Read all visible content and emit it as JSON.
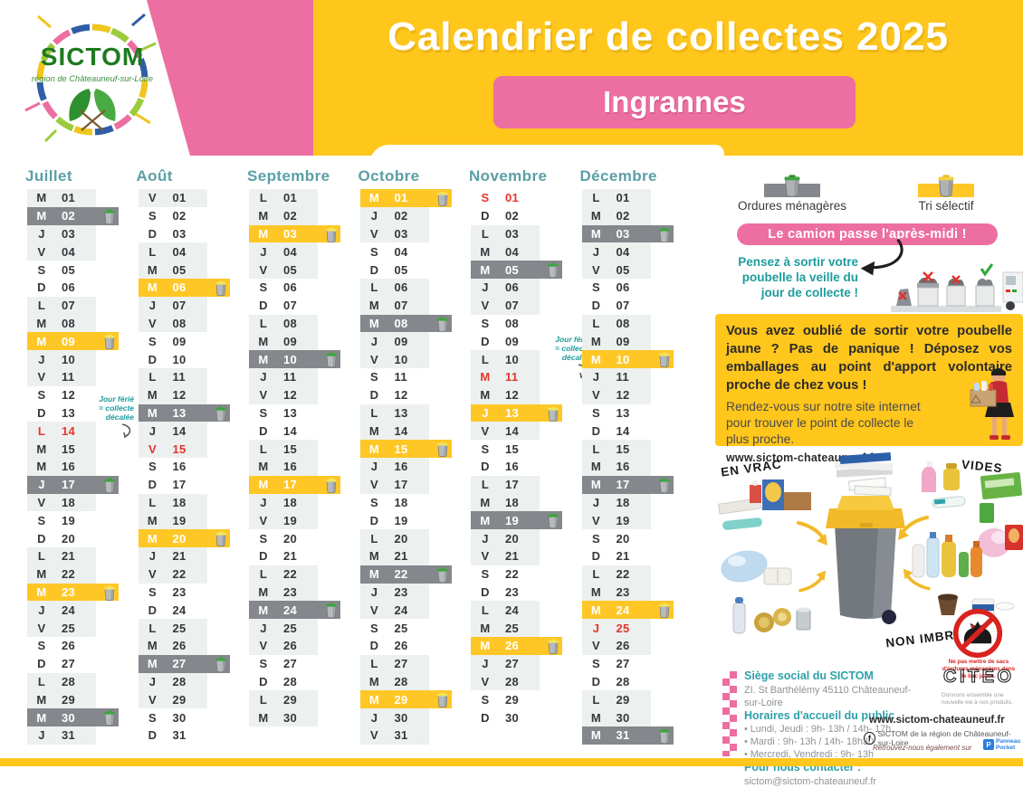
{
  "header": {
    "title": "Calendrier de collectes 2025",
    "commune": "Ingrannes",
    "logo_name": "SICTOM",
    "logo_subtitle": "région de Châteauneuf-sur-Loire"
  },
  "colors": {
    "yellow": "#FFC61C",
    "pink": "#ED6EA0",
    "gray_collect": "#84888C",
    "yellow_collect": "#FFC726",
    "holiday_red": "#E5352E",
    "teal": "#5B9FA6"
  },
  "legend": {
    "om": "Ordures ménagères",
    "tri": "Tri sélectif",
    "banner": "Le camion passe l'après-midi !",
    "reminder": "Pensez à sortir votre poubelle la veille du jour de collecte !"
  },
  "info": {
    "bold": "Vous avez oublié de sortir votre poubelle jaune ? Pas de panique ! Déposez vos emballages au point d'apport volontaire proche de chez vous !",
    "body": "Rendez-vous sur notre site internet pour trouver le point de collecte le plus proche.",
    "site": "www.sictom-chateauneuf.fr"
  },
  "sort": {
    "vrac": "EN VRAC",
    "vides": "VIDES",
    "non_imbriques": "NON IMBRIQUÉS",
    "no_bag": "Ne pas mettre de sacs d'ordures ménagères dans le bac jaune."
  },
  "contact": {
    "hq_title": "Siège social du SICTOM",
    "hq_addr": "ZI. St Barthélémy 45110 Châteauneuf-sur-Loire",
    "hours_title": "Horaires d'accueil du public",
    "hours": [
      "• Lundi, Jeudi : 9h- 13h / 14h- 17h",
      "• Mardi : 9h- 13h / 14h- 18h30",
      "• Mercredi, Vendredi : 9h- 13h"
    ],
    "contact_title": "Pour nous contacter :",
    "email": "sictom@sictom-chateauneuf.fr"
  },
  "foot": {
    "citeo": "CITEO",
    "citeo_tag": "Donnons ensemble une nouvelle vie à nos produits.",
    "site": "www.sictom-chateauneuf.fr",
    "fb": "SICTOM de la région de Châteauneuf-sur-Loire",
    "also": "Retrouvez-nous également sur",
    "pp1": "Panneau",
    "pp2": "Pocket"
  },
  "calendar": {
    "holiday_note_lines": [
      "Jour férié",
      "= collecte",
      "décalée"
    ],
    "legend_types": {
      "om": "ordures-menageres",
      "tri": "tri-selectif",
      "hol": "jour-ferie"
    },
    "months": [
      {
        "name": "Juillet",
        "days": [
          [
            "M",
            "01"
          ],
          [
            "M",
            "02",
            "om"
          ],
          [
            "J",
            "03"
          ],
          [
            "V",
            "04"
          ],
          [
            "S",
            "05"
          ],
          [
            "D",
            "06"
          ],
          [
            "L",
            "07"
          ],
          [
            "M",
            "08"
          ],
          [
            "M",
            "09",
            "tri"
          ],
          [
            "J",
            "10"
          ],
          [
            "V",
            "11"
          ],
          [
            "S",
            "12"
          ],
          [
            "D",
            "13"
          ],
          [
            "L",
            "14",
            "hol"
          ],
          [
            "M",
            "15"
          ],
          [
            "M",
            "16"
          ],
          [
            "J",
            "17",
            "om"
          ],
          [
            "V",
            "18"
          ],
          [
            "S",
            "19"
          ],
          [
            "D",
            "20"
          ],
          [
            "L",
            "21"
          ],
          [
            "M",
            "22"
          ],
          [
            "M",
            "23",
            "tri"
          ],
          [
            "J",
            "24"
          ],
          [
            "V",
            "25"
          ],
          [
            "S",
            "26"
          ],
          [
            "D",
            "27"
          ],
          [
            "L",
            "28"
          ],
          [
            "M",
            "29"
          ],
          [
            "M",
            "30",
            "om"
          ],
          [
            "J",
            "31"
          ]
        ]
      },
      {
        "name": "Août",
        "days": [
          [
            "V",
            "01"
          ],
          [
            "S",
            "02"
          ],
          [
            "D",
            "03"
          ],
          [
            "L",
            "04"
          ],
          [
            "M",
            "05"
          ],
          [
            "M",
            "06",
            "tri"
          ],
          [
            "J",
            "07"
          ],
          [
            "V",
            "08"
          ],
          [
            "S",
            "09"
          ],
          [
            "D",
            "10"
          ],
          [
            "L",
            "11"
          ],
          [
            "M",
            "12"
          ],
          [
            "M",
            "13",
            "om"
          ],
          [
            "J",
            "14"
          ],
          [
            "V",
            "15",
            "hol"
          ],
          [
            "S",
            "16"
          ],
          [
            "D",
            "17"
          ],
          [
            "L",
            "18"
          ],
          [
            "M",
            "19"
          ],
          [
            "M",
            "20",
            "tri"
          ],
          [
            "J",
            "21"
          ],
          [
            "V",
            "22"
          ],
          [
            "S",
            "23"
          ],
          [
            "D",
            "24"
          ],
          [
            "L",
            "25"
          ],
          [
            "M",
            "26"
          ],
          [
            "M",
            "27",
            "om"
          ],
          [
            "J",
            "28"
          ],
          [
            "V",
            "29"
          ],
          [
            "S",
            "30"
          ],
          [
            "D",
            "31"
          ]
        ]
      },
      {
        "name": "Septembre",
        "days": [
          [
            "L",
            "01"
          ],
          [
            "M",
            "02"
          ],
          [
            "M",
            "03",
            "tri"
          ],
          [
            "J",
            "04"
          ],
          [
            "V",
            "05"
          ],
          [
            "S",
            "06"
          ],
          [
            "D",
            "07"
          ],
          [
            "L",
            "08"
          ],
          [
            "M",
            "09"
          ],
          [
            "M",
            "10",
            "om"
          ],
          [
            "J",
            "11"
          ],
          [
            "V",
            "12"
          ],
          [
            "S",
            "13"
          ],
          [
            "D",
            "14"
          ],
          [
            "L",
            "15"
          ],
          [
            "M",
            "16"
          ],
          [
            "M",
            "17",
            "tri"
          ],
          [
            "J",
            "18"
          ],
          [
            "V",
            "19"
          ],
          [
            "S",
            "20"
          ],
          [
            "D",
            "21"
          ],
          [
            "L",
            "22"
          ],
          [
            "M",
            "23"
          ],
          [
            "M",
            "24",
            "om"
          ],
          [
            "J",
            "25"
          ],
          [
            "V",
            "26"
          ],
          [
            "S",
            "27"
          ],
          [
            "D",
            "28"
          ],
          [
            "L",
            "29"
          ],
          [
            "M",
            "30"
          ]
        ]
      },
      {
        "name": "Octobre",
        "days": [
          [
            "M",
            "01",
            "tri"
          ],
          [
            "J",
            "02"
          ],
          [
            "V",
            "03"
          ],
          [
            "S",
            "04"
          ],
          [
            "D",
            "05"
          ],
          [
            "L",
            "06"
          ],
          [
            "M",
            "07"
          ],
          [
            "M",
            "08",
            "om"
          ],
          [
            "J",
            "09"
          ],
          [
            "V",
            "10"
          ],
          [
            "S",
            "11"
          ],
          [
            "D",
            "12"
          ],
          [
            "L",
            "13"
          ],
          [
            "M",
            "14"
          ],
          [
            "M",
            "15",
            "tri"
          ],
          [
            "J",
            "16"
          ],
          [
            "V",
            "17"
          ],
          [
            "S",
            "18"
          ],
          [
            "D",
            "19"
          ],
          [
            "L",
            "20"
          ],
          [
            "M",
            "21"
          ],
          [
            "M",
            "22",
            "om"
          ],
          [
            "J",
            "23"
          ],
          [
            "V",
            "24"
          ],
          [
            "S",
            "25"
          ],
          [
            "D",
            "26"
          ],
          [
            "L",
            "27"
          ],
          [
            "M",
            "28"
          ],
          [
            "M",
            "29",
            "tri"
          ],
          [
            "J",
            "30"
          ],
          [
            "V",
            "31"
          ]
        ]
      },
      {
        "name": "Novembre",
        "days": [
          [
            "S",
            "01",
            "hol"
          ],
          [
            "D",
            "02"
          ],
          [
            "L",
            "03"
          ],
          [
            "M",
            "04"
          ],
          [
            "M",
            "05",
            "om"
          ],
          [
            "J",
            "06"
          ],
          [
            "V",
            "07"
          ],
          [
            "S",
            "08"
          ],
          [
            "D",
            "09"
          ],
          [
            "L",
            "10"
          ],
          [
            "M",
            "11",
            "hol"
          ],
          [
            "M",
            "12"
          ],
          [
            "J",
            "13",
            "tri"
          ],
          [
            "V",
            "14"
          ],
          [
            "S",
            "15"
          ],
          [
            "D",
            "16"
          ],
          [
            "L",
            "17"
          ],
          [
            "M",
            "18"
          ],
          [
            "M",
            "19",
            "om"
          ],
          [
            "J",
            "20"
          ],
          [
            "V",
            "21"
          ],
          [
            "S",
            "22"
          ],
          [
            "D",
            "23"
          ],
          [
            "L",
            "24"
          ],
          [
            "M",
            "25"
          ],
          [
            "M",
            "26",
            "tri"
          ],
          [
            "J",
            "27"
          ],
          [
            "V",
            "28"
          ],
          [
            "S",
            "29"
          ],
          [
            "D",
            "30"
          ]
        ]
      },
      {
        "name": "Décembre",
        "days": [
          [
            "L",
            "01"
          ],
          [
            "M",
            "02"
          ],
          [
            "M",
            "03",
            "om"
          ],
          [
            "J",
            "04"
          ],
          [
            "V",
            "05"
          ],
          [
            "S",
            "06"
          ],
          [
            "D",
            "07"
          ],
          [
            "L",
            "08"
          ],
          [
            "M",
            "09"
          ],
          [
            "M",
            "10",
            "tri"
          ],
          [
            "J",
            "11"
          ],
          [
            "V",
            "12"
          ],
          [
            "S",
            "13"
          ],
          [
            "D",
            "14"
          ],
          [
            "L",
            "15"
          ],
          [
            "M",
            "16"
          ],
          [
            "M",
            "17",
            "om"
          ],
          [
            "J",
            "18"
          ],
          [
            "V",
            "19"
          ],
          [
            "S",
            "20"
          ],
          [
            "D",
            "21"
          ],
          [
            "L",
            "22"
          ],
          [
            "M",
            "23"
          ],
          [
            "M",
            "24",
            "tri"
          ],
          [
            "J",
            "25",
            "hol"
          ],
          [
            "V",
            "26"
          ],
          [
            "S",
            "27"
          ],
          [
            "D",
            "28"
          ],
          [
            "L",
            "29"
          ],
          [
            "M",
            "30"
          ],
          [
            "M",
            "31",
            "om"
          ]
        ]
      }
    ]
  }
}
